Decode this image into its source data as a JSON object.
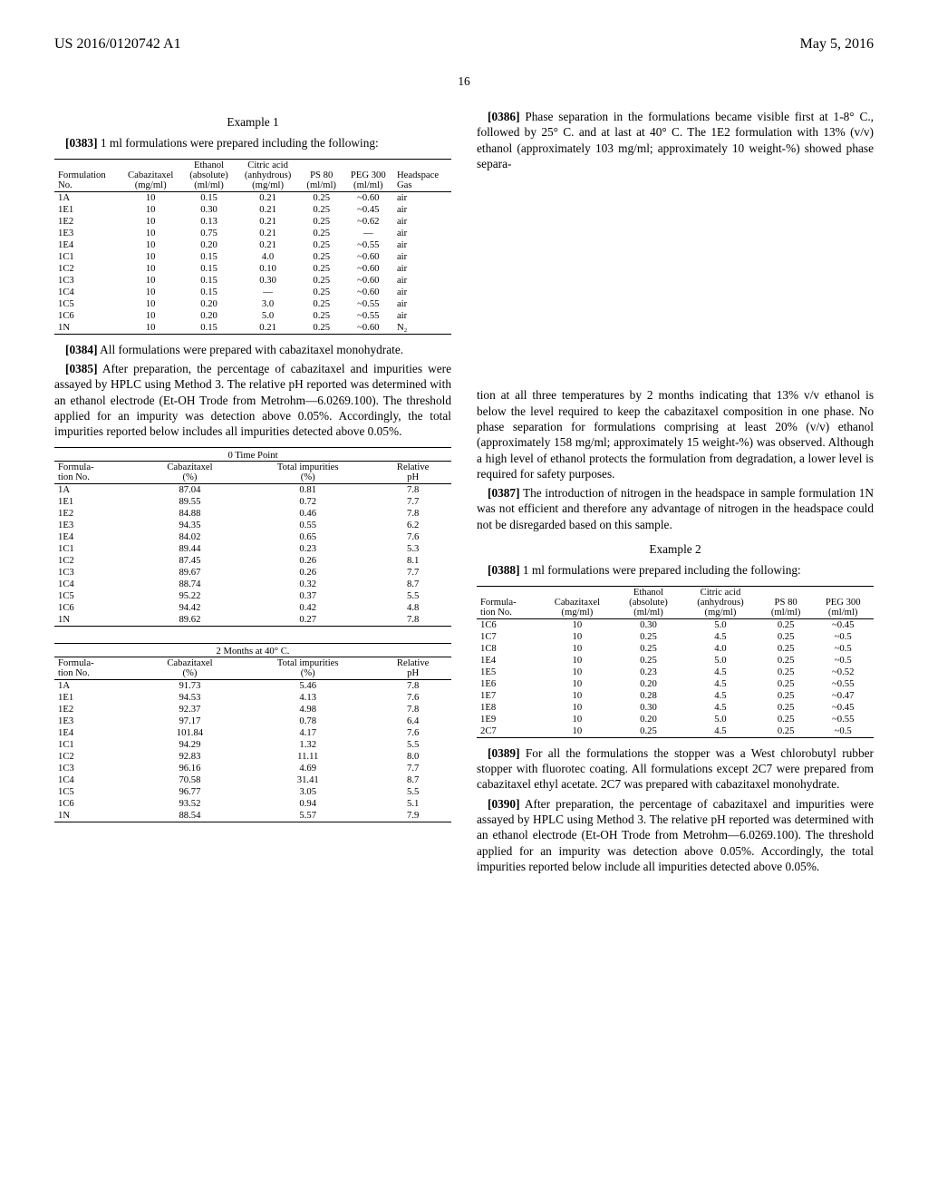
{
  "header": {
    "left": "US 2016/0120742 A1",
    "right": "May 5, 2016"
  },
  "pageNumber": "16",
  "ex1_title": "Example 1",
  "p0383": {
    "num": "[0383]",
    "text": "1 ml formulations were prepared including the following:"
  },
  "table1": {
    "headers": [
      "Formulation\nNo.",
      "Cabazitaxel\n(mg/ml)",
      "Ethanol\n(absolute)\n(ml/ml)",
      "Citric acid\n(anhydrous)\n(mg/ml)",
      "PS 80\n(ml/ml)",
      "PEG 300\n(ml/ml)",
      "Headspace\nGas"
    ],
    "rows": [
      [
        "1A",
        "10",
        "0.15",
        "0.21",
        "0.25",
        "~0.60",
        "air"
      ],
      [
        "1E1",
        "10",
        "0.30",
        "0.21",
        "0.25",
        "~0.45",
        "air"
      ],
      [
        "1E2",
        "10",
        "0.13",
        "0.21",
        "0.25",
        "~0.62",
        "air"
      ],
      [
        "1E3",
        "10",
        "0.75",
        "0.21",
        "0.25",
        "—",
        "air"
      ],
      [
        "1E4",
        "10",
        "0.20",
        "0.21",
        "0.25",
        "~0.55",
        "air"
      ],
      [
        "1C1",
        "10",
        "0.15",
        "4.0",
        "0.25",
        "~0.60",
        "air"
      ],
      [
        "1C2",
        "10",
        "0.15",
        "0.10",
        "0.25",
        "~0.60",
        "air"
      ],
      [
        "1C3",
        "10",
        "0.15",
        "0.30",
        "0.25",
        "~0.60",
        "air"
      ],
      [
        "1C4",
        "10",
        "0.15",
        "—",
        "0.25",
        "~0.60",
        "air"
      ],
      [
        "1C5",
        "10",
        "0.20",
        "3.0",
        "0.25",
        "~0.55",
        "air"
      ],
      [
        "1C6",
        "10",
        "0.20",
        "5.0",
        "0.25",
        "~0.55",
        "air"
      ],
      [
        "1N",
        "10",
        "0.15",
        "0.21",
        "0.25",
        "~0.60",
        "N₂"
      ]
    ]
  },
  "p0384": {
    "num": "[0384]",
    "text": "All formulations were prepared with cabazitaxel monohydrate."
  },
  "p0385": {
    "num": "[0385]",
    "text": "After preparation, the percentage of cabazitaxel and impurities were assayed by HPLC using Method 3. The relative pH reported was determined with an ethanol electrode (Et-OH Trode from Metrohm—6.0269.100). The threshold applied for an impurity was detection above 0.05%. Accordingly, the total impurities reported below includes all impurities detected above 0.05%."
  },
  "table2": {
    "title": "0 Time Point",
    "headers": [
      "Formula-\ntion No.",
      "Cabazitaxel\n(%)",
      "Total impurities\n(%)",
      "Relative\npH"
    ],
    "rows": [
      [
        "1A",
        "87.04",
        "0.81",
        "7.8"
      ],
      [
        "1E1",
        "89.55",
        "0.72",
        "7.7"
      ],
      [
        "1E2",
        "84.88",
        "0.46",
        "7.8"
      ],
      [
        "1E3",
        "94.35",
        "0.55",
        "6.2"
      ],
      [
        "1E4",
        "84.02",
        "0.65",
        "7.6"
      ],
      [
        "1C1",
        "89.44",
        "0.23",
        "5.3"
      ],
      [
        "1C2",
        "87.45",
        "0.26",
        "8.1"
      ],
      [
        "1C3",
        "89.67",
        "0.26",
        "7.7"
      ],
      [
        "1C4",
        "88.74",
        "0.32",
        "8.7"
      ],
      [
        "1C5",
        "95.22",
        "0.37",
        "5.5"
      ],
      [
        "1C6",
        "94.42",
        "0.42",
        "4.8"
      ],
      [
        "1N",
        "89.62",
        "0.27",
        "7.8"
      ]
    ]
  },
  "table3": {
    "title": "2 Months at 40° C.",
    "headers": [
      "Formula-\ntion No.",
      "Cabazitaxel\n(%)",
      "Total impurities\n(%)",
      "Relative\npH"
    ],
    "rows": [
      [
        "1A",
        "91.73",
        "5.46",
        "7.8"
      ],
      [
        "1E1",
        "94.53",
        "4.13",
        "7.6"
      ],
      [
        "1E2",
        "92.37",
        "4.98",
        "7.8"
      ],
      [
        "1E3",
        "97.17",
        "0.78",
        "6.4"
      ],
      [
        "1E4",
        "101.84",
        "4.17",
        "7.6"
      ],
      [
        "1C1",
        "94.29",
        "1.32",
        "5.5"
      ],
      [
        "1C2",
        "92.83",
        "11.11",
        "8.0"
      ],
      [
        "1C3",
        "96.16",
        "4.69",
        "7.7"
      ],
      [
        "1C4",
        "70.58",
        "31.41",
        "8.7"
      ],
      [
        "1C5",
        "96.77",
        "3.05",
        "5.5"
      ],
      [
        "1C6",
        "93.52",
        "0.94",
        "5.1"
      ],
      [
        "1N",
        "88.54",
        "5.57",
        "7.9"
      ]
    ]
  },
  "p0386": {
    "num": "[0386]",
    "text": "Phase separation in the formulations became visible first at 1-8° C., followed by 25° C. and at last at 40° C. The 1E2 formulation with 13% (v/v) ethanol (approximately 103 mg/ml; approximately 10 weight-%) showed phase separa-"
  },
  "p_cont": "tion at all three temperatures by 2 months indicating that 13% v/v ethanol is below the level required to keep the cabazitaxel composition in one phase. No phase separation for formulations comprising at least 20% (v/v) ethanol (approximately 158 mg/ml; approximately 15 weight-%) was observed. Although a high level of ethanol protects the formulation from degradation, a lower level is required for safety purposes.",
  "p0387": {
    "num": "[0387]",
    "text": "The introduction of nitrogen in the headspace in sample formulation 1N was not efficient and therefore any advantage of nitrogen in the headspace could not be disregarded based on this sample."
  },
  "ex2_title": "Example 2",
  "p0388": {
    "num": "[0388]",
    "text": "1 ml formulations were prepared including the following:"
  },
  "table4": {
    "headers": [
      "Formula-\ntion No.",
      "Cabazitaxel\n(mg/ml)",
      "Ethanol\n(absolute)\n(ml/ml)",
      "Citric acid\n(anhydrous)\n(mg/ml)",
      "PS 80\n(ml/ml)",
      "PEG 300\n(ml/ml)"
    ],
    "rows": [
      [
        "1C6",
        "10",
        "0.30",
        "5.0",
        "0.25",
        "~0.45"
      ],
      [
        "1C7",
        "10",
        "0.25",
        "4.5",
        "0.25",
        "~0.5"
      ],
      [
        "1C8",
        "10",
        "0.25",
        "4.0",
        "0.25",
        "~0.5"
      ],
      [
        "1E4",
        "10",
        "0.25",
        "5.0",
        "0.25",
        "~0.5"
      ],
      [
        "1E5",
        "10",
        "0.23",
        "4.5",
        "0.25",
        "~0.52"
      ],
      [
        "1E6",
        "10",
        "0.20",
        "4.5",
        "0.25",
        "~0.55"
      ],
      [
        "1E7",
        "10",
        "0.28",
        "4.5",
        "0.25",
        "~0.47"
      ],
      [
        "1E8",
        "10",
        "0.30",
        "4.5",
        "0.25",
        "~0.45"
      ],
      [
        "1E9",
        "10",
        "0.20",
        "5.0",
        "0.25",
        "~0.55"
      ],
      [
        "2C7",
        "10",
        "0.25",
        "4.5",
        "0.25",
        "~0.5"
      ]
    ]
  },
  "p0389": {
    "num": "[0389]",
    "text": "For all the formulations the stopper was a West chlorobutyl rubber stopper with fluorotec coating. All formulations except 2C7 were prepared from cabazitaxel ethyl acetate. 2C7 was prepared with cabazitaxel monohydrate."
  },
  "p0390": {
    "num": "[0390]",
    "text": "After preparation, the percentage of cabazitaxel and impurities were assayed by HPLC using Method 3. The relative pH reported was determined with an ethanol electrode (Et-OH Trode from Metrohm—6.0269.100). The threshold applied for an impurity was detection above 0.05%. Accordingly, the total impurities reported below include all impurities detected above 0.05%."
  }
}
